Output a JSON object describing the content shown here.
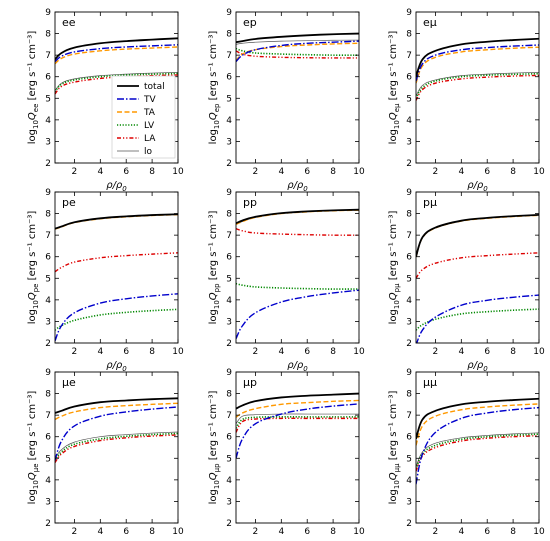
{
  "chart_data": {
    "type": "line",
    "layout": "3x3 grid",
    "xlim": [
      0.5,
      10
    ],
    "ylim": [
      2,
      9
    ],
    "xticks": [
      2,
      4,
      6,
      8,
      10
    ],
    "yticks": [
      2,
      3,
      4,
      5,
      6,
      7,
      8,
      9
    ],
    "xlabel": "ρ/ρ",
    "xlabel_sub": "0",
    "ylabel_prefix": "log",
    "ylabel_base_sub": "10",
    "ylabel_q": "Q",
    "ylabel_units": "[erg s⁻¹ cm⁻³]",
    "grid": false,
    "legend": {
      "panel": "ee",
      "placement": "lower-right",
      "entries": [
        "total",
        "TV",
        "TA",
        "LV",
        "LA",
        "lo"
      ]
    },
    "styles": {
      "total": {
        "color": "#000000",
        "dash": "",
        "width": 1.8
      },
      "TV": {
        "color": "#0000cc",
        "dash": "7,2,1.5,2",
        "width": 1.4
      },
      "TA": {
        "color": "#ff9900",
        "dash": "5,2.5",
        "width": 1.4
      },
      "LV": {
        "color": "#008800",
        "dash": "1.2,1.6",
        "width": 1.6
      },
      "LA": {
        "color": "#dd0000",
        "dash": "4,2,1.2,2,1.2,2",
        "width": 1.4
      },
      "lo": {
        "color": "#555555",
        "dash": "",
        "width": 0.7
      }
    },
    "panels": [
      {
        "id": "ee",
        "title": "ee",
        "ysub": "ee",
        "x": [
          0.5,
          1,
          2,
          4,
          6,
          8,
          10
        ],
        "series": [
          {
            "name": "total",
            "values": [
              6.8,
              7.1,
              7.35,
              7.55,
              7.65,
              7.72,
              7.78
            ]
          },
          {
            "name": "TV",
            "values": [
              6.7,
              6.95,
              7.15,
              7.3,
              7.38,
              7.43,
              7.48
            ]
          },
          {
            "name": "TA",
            "values": [
              6.6,
              6.85,
              7.05,
              7.2,
              7.28,
              7.33,
              7.38
            ]
          },
          {
            "name": "LV",
            "values": [
              5.3,
              5.65,
              5.85,
              6.0,
              6.08,
              6.12,
              6.15
            ]
          },
          {
            "name": "LA",
            "values": [
              5.2,
              5.55,
              5.75,
              5.92,
              6.0,
              6.05,
              6.08
            ]
          },
          {
            "name": "lo",
            "values": [
              5.35,
              5.7,
              5.9,
              6.05,
              6.12,
              6.17,
              6.2
            ]
          }
        ]
      },
      {
        "id": "ep",
        "title": "ep",
        "ysub": "ep",
        "x": [
          0.5,
          1,
          2,
          4,
          6,
          8,
          10
        ],
        "series": [
          {
            "name": "total",
            "values": [
              7.6,
              7.65,
              7.75,
              7.85,
              7.92,
              7.97,
              8.0
            ]
          },
          {
            "name": "TV",
            "values": [
              6.7,
              7.0,
              7.25,
              7.45,
              7.55,
              7.6,
              7.65
            ]
          },
          {
            "name": "TA",
            "values": [
              6.75,
              7.05,
              7.25,
              7.4,
              7.47,
              7.52,
              7.55
            ]
          },
          {
            "name": "LV",
            "values": [
              7.3,
              7.2,
              7.1,
              7.05,
              7.02,
              7.0,
              7.0
            ]
          },
          {
            "name": "LA",
            "values": [
              7.2,
              7.05,
              6.95,
              6.9,
              6.88,
              6.87,
              6.87
            ]
          },
          {
            "name": "lo",
            "values": [
              7.5,
              7.55,
              7.6,
              7.65,
              7.67,
              7.69,
              7.7
            ]
          }
        ]
      },
      {
        "id": "eμ",
        "title": "eμ",
        "ysub": "eμ",
        "x": [
          0.5,
          1,
          2,
          4,
          6,
          8,
          10
        ],
        "series": [
          {
            "name": "total",
            "values": [
              6.0,
              6.8,
              7.2,
              7.5,
              7.62,
              7.7,
              7.76
            ]
          },
          {
            "name": "TV",
            "values": [
              5.8,
              6.6,
              7.0,
              7.25,
              7.35,
              7.42,
              7.47
            ]
          },
          {
            "name": "TA",
            "values": [
              5.7,
              6.5,
              6.9,
              7.15,
              7.25,
              7.32,
              7.37
            ]
          },
          {
            "name": "LV",
            "values": [
              5.0,
              5.5,
              5.8,
              6.0,
              6.07,
              6.11,
              6.14
            ]
          },
          {
            "name": "LA",
            "values": [
              4.9,
              5.4,
              5.7,
              5.9,
              5.98,
              6.03,
              6.06
            ]
          },
          {
            "name": "lo",
            "values": [
              5.1,
              5.6,
              5.85,
              6.05,
              6.12,
              6.17,
              6.2
            ]
          }
        ]
      },
      {
        "id": "pe",
        "title": "pe",
        "ysub": "pe",
        "x": [
          0.5,
          1,
          2,
          4,
          6,
          8,
          10
        ],
        "series": [
          {
            "name": "total",
            "values": [
              7.3,
              7.4,
              7.6,
              7.78,
              7.87,
              7.93,
              7.97
            ]
          },
          {
            "name": "TV",
            "values": [
              2.1,
              2.8,
              3.4,
              3.85,
              4.05,
              4.18,
              4.28
            ]
          },
          {
            "name": "TA",
            "values": [
              7.28,
              7.38,
              7.58,
              7.76,
              7.85,
              7.91,
              7.95
            ]
          },
          {
            "name": "LV",
            "values": [
              2.6,
              2.8,
              3.05,
              3.3,
              3.42,
              3.5,
              3.56
            ]
          },
          {
            "name": "LA",
            "values": [
              5.3,
              5.5,
              5.75,
              5.95,
              6.05,
              6.12,
              6.18
            ]
          },
          {
            "name": "lo",
            "values": [
              7.3,
              7.4,
              7.6,
              7.78,
              7.87,
              7.93,
              7.97
            ]
          }
        ]
      },
      {
        "id": "pp",
        "title": "pp",
        "ysub": "pp",
        "x": [
          0.5,
          1,
          2,
          4,
          6,
          8,
          10
        ],
        "series": [
          {
            "name": "total",
            "values": [
              7.55,
              7.68,
              7.85,
              8.02,
              8.1,
              8.15,
              8.18
            ]
          },
          {
            "name": "TV",
            "values": [
              2.2,
              2.8,
              3.4,
              3.9,
              4.15,
              4.32,
              4.45
            ]
          },
          {
            "name": "TA",
            "values": [
              7.5,
              7.63,
              7.82,
              8.0,
              8.08,
              8.13,
              8.16
            ]
          },
          {
            "name": "LV",
            "values": [
              4.75,
              4.68,
              4.6,
              4.55,
              4.52,
              4.5,
              4.5
            ]
          },
          {
            "name": "LA",
            "values": [
              7.3,
              7.2,
              7.1,
              7.05,
              7.02,
              7.0,
              7.0
            ]
          },
          {
            "name": "lo",
            "values": [
              7.5,
              7.63,
              7.82,
              8.0,
              8.08,
              8.13,
              8.16
            ]
          }
        ]
      },
      {
        "id": "pμ",
        "title": "pμ",
        "ysub": "pμ",
        "x": [
          0.5,
          1,
          2,
          4,
          6,
          8,
          10
        ],
        "series": [
          {
            "name": "total",
            "values": [
              6.0,
              6.9,
              7.35,
              7.67,
              7.8,
              7.88,
              7.94
            ]
          },
          {
            "name": "TV",
            "values": [
              1.9,
              2.6,
              3.2,
              3.75,
              3.98,
              4.12,
              4.22
            ]
          },
          {
            "name": "TA",
            "values": [
              5.98,
              6.88,
              7.33,
              7.65,
              7.78,
              7.86,
              7.92
            ]
          },
          {
            "name": "LV",
            "values": [
              2.6,
              2.85,
              3.1,
              3.35,
              3.45,
              3.52,
              3.57
            ]
          },
          {
            "name": "LA",
            "values": [
              5.0,
              5.4,
              5.7,
              5.95,
              6.05,
              6.12,
              6.18
            ]
          },
          {
            "name": "lo",
            "values": [
              6.0,
              6.9,
              7.35,
              7.67,
              7.8,
              7.88,
              7.94
            ]
          }
        ]
      },
      {
        "id": "μe",
        "title": "μe",
        "ysub": "μe",
        "x": [
          0.5,
          1,
          2,
          4,
          6,
          8,
          10
        ],
        "series": [
          {
            "name": "total",
            "values": [
              7.1,
              7.2,
              7.4,
              7.6,
              7.68,
              7.74,
              7.78
            ]
          },
          {
            "name": "TV",
            "values": [
              4.9,
              5.8,
              6.5,
              6.95,
              7.15,
              7.28,
              7.38
            ]
          },
          {
            "name": "TA",
            "values": [
              6.8,
              6.95,
              7.15,
              7.35,
              7.44,
              7.5,
              7.55
            ]
          },
          {
            "name": "LV",
            "values": [
              4.9,
              5.3,
              5.65,
              5.9,
              6.02,
              6.1,
              6.15
            ]
          },
          {
            "name": "LA",
            "values": [
              4.8,
              5.2,
              5.55,
              5.82,
              5.95,
              6.03,
              6.08
            ]
          },
          {
            "name": "lo",
            "values": [
              5.0,
              5.4,
              5.75,
              6.0,
              6.1,
              6.17,
              6.22
            ]
          }
        ]
      },
      {
        "id": "μp",
        "title": "μp",
        "ysub": "μp",
        "x": [
          0.5,
          1,
          2,
          4,
          6,
          8,
          10
        ],
        "series": [
          {
            "name": "total",
            "values": [
              7.3,
              7.45,
              7.65,
              7.82,
              7.9,
              7.95,
              8.0
            ]
          },
          {
            "name": "TV",
            "values": [
              5.0,
              5.9,
              6.6,
              7.05,
              7.28,
              7.42,
              7.52
            ]
          },
          {
            "name": "TA",
            "values": [
              6.9,
              7.1,
              7.3,
              7.5,
              7.58,
              7.64,
              7.68
            ]
          },
          {
            "name": "LV",
            "values": [
              6.4,
              6.8,
              6.9,
              6.92,
              6.92,
              6.92,
              6.92
            ]
          },
          {
            "name": "LA",
            "values": [
              6.2,
              6.7,
              6.82,
              6.85,
              6.85,
              6.85,
              6.85
            ]
          },
          {
            "name": "lo",
            "values": [
              6.6,
              6.95,
              7.02,
              7.05,
              7.05,
              7.05,
              7.05
            ]
          }
        ]
      },
      {
        "id": "μμ",
        "title": "μμ",
        "ysub": "μμ",
        "x": [
          0.5,
          1,
          2,
          4,
          6,
          8,
          10
        ],
        "series": [
          {
            "name": "total",
            "values": [
              5.9,
              6.8,
              7.2,
              7.5,
              7.62,
              7.7,
              7.76
            ]
          },
          {
            "name": "TV",
            "values": [
              3.8,
              5.2,
              6.2,
              6.85,
              7.1,
              7.25,
              7.35
            ]
          },
          {
            "name": "TA",
            "values": [
              5.6,
              6.5,
              6.95,
              7.25,
              7.38,
              7.46,
              7.52
            ]
          },
          {
            "name": "LV",
            "values": [
              4.5,
              5.2,
              5.6,
              5.88,
              6.0,
              6.07,
              6.12
            ]
          },
          {
            "name": "LA",
            "values": [
              4.4,
              5.1,
              5.5,
              5.8,
              5.93,
              6.0,
              6.05
            ]
          },
          {
            "name": "lo",
            "values": [
              4.6,
              5.3,
              5.7,
              5.95,
              6.06,
              6.13,
              6.18
            ]
          }
        ]
      }
    ]
  }
}
